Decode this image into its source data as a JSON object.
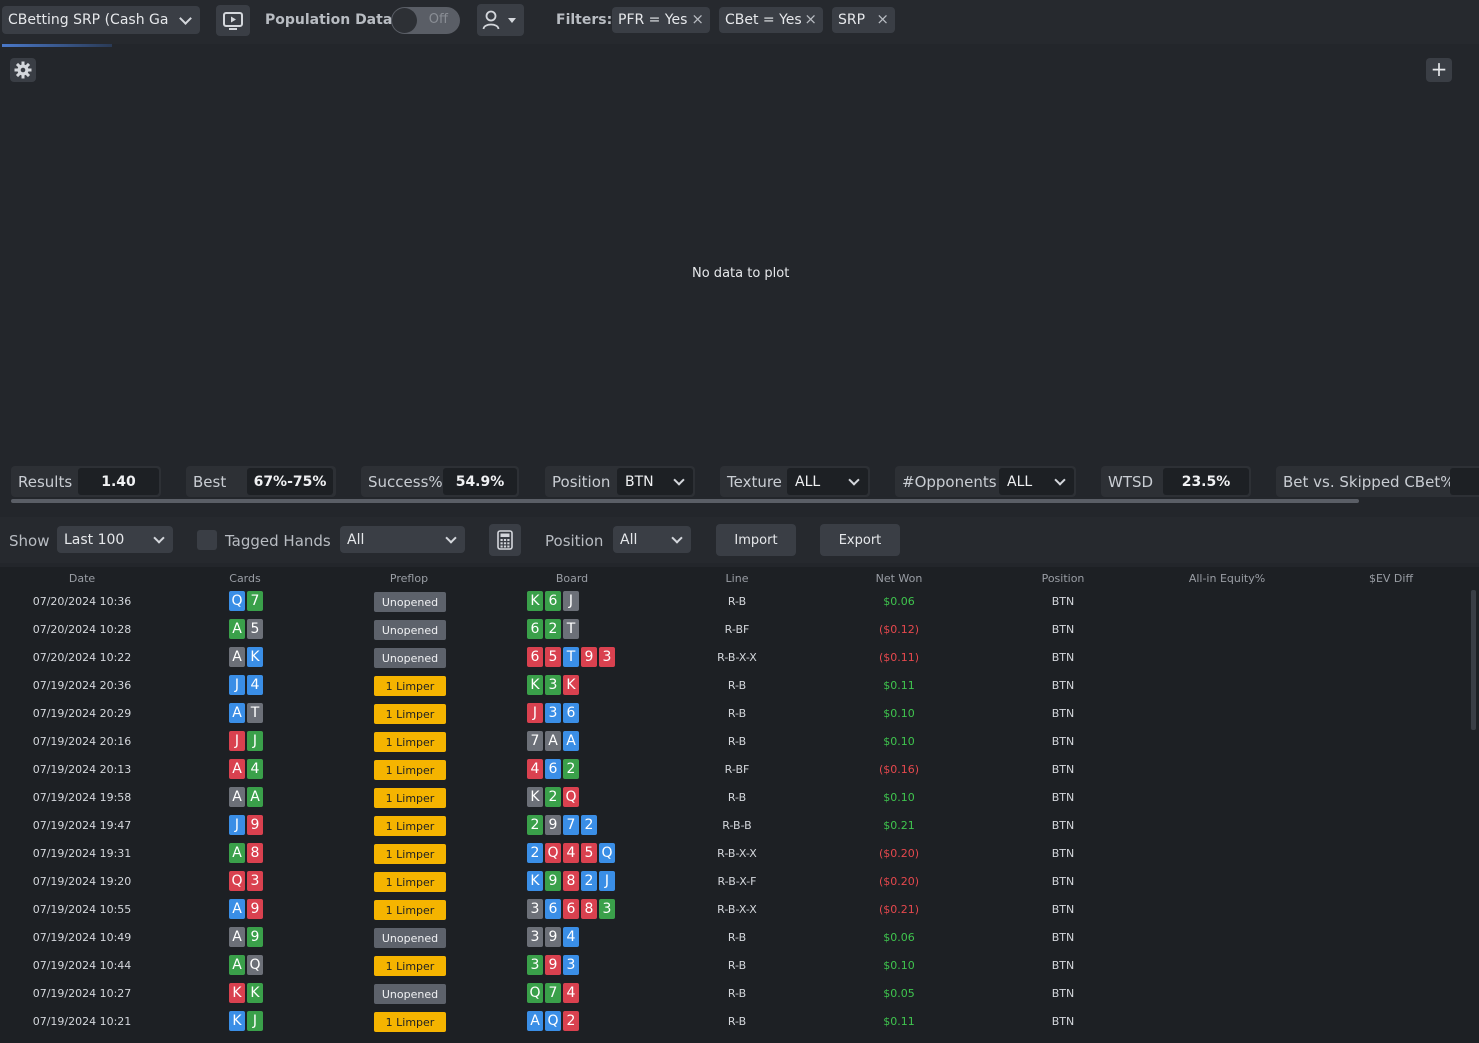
{
  "topbar": {
    "report_select": "CBetting SRP (Cash Game)",
    "presentation_icon": "presentation-icon",
    "population_label": "Population Data",
    "population_toggle": "Off",
    "player_icon": "user-icon",
    "filters_label": "Filters:",
    "filters": [
      {
        "label": "PFR = Yes"
      },
      {
        "label": "CBet = Yes"
      },
      {
        "label": "SRP"
      }
    ]
  },
  "plot": {
    "no_data": "No data to plot"
  },
  "stats": [
    {
      "label": "Results",
      "value": "1.40"
    },
    {
      "label": "Best",
      "value": "67%-75%"
    },
    {
      "label": "Success%",
      "value": "54.9%"
    },
    {
      "label": "Position",
      "value": "BTN"
    },
    {
      "label": "Texture",
      "value": "ALL"
    },
    {
      "label": "#Opponents",
      "value": "ALL"
    },
    {
      "label": "WTSD",
      "value": "23.5%"
    },
    {
      "label": "Bet vs. Skipped CBet%",
      "value": ""
    }
  ],
  "toolbar": {
    "show_label": "Show",
    "show_value": "Last 100",
    "tagged_label": "Tagged Hands",
    "tagged_value": "All",
    "position_label": "Position",
    "position_value": "All",
    "import_label": "Import",
    "export_label": "Export"
  },
  "table": {
    "columns": [
      "Date",
      "Cards",
      "Preflop",
      "Board",
      "Line",
      "Net Won",
      "Position",
      "All-in Equity%",
      "$EV Diff"
    ],
    "rows": [
      {
        "date": "07/20/2024 10:36",
        "cards": [
          [
            "Q",
            "b"
          ],
          [
            "7",
            "g"
          ]
        ],
        "preflop": "Unopened",
        "board": [
          [
            "K",
            "g"
          ],
          [
            "6",
            "g"
          ],
          [
            "J",
            "x"
          ]
        ],
        "line": "R-B",
        "net": "$0.06",
        "pos": "BTN"
      },
      {
        "date": "07/20/2024 10:28",
        "cards": [
          [
            "A",
            "g"
          ],
          [
            "5",
            "x"
          ]
        ],
        "preflop": "Unopened",
        "board": [
          [
            "6",
            "g"
          ],
          [
            "2",
            "g"
          ],
          [
            "T",
            "x"
          ]
        ],
        "line": "R-BF",
        "net": "($0.12)",
        "pos": "BTN"
      },
      {
        "date": "07/20/2024 10:22",
        "cards": [
          [
            "A",
            "x"
          ],
          [
            "K",
            "b"
          ]
        ],
        "preflop": "Unopened",
        "board": [
          [
            "6",
            "r"
          ],
          [
            "5",
            "r"
          ],
          [
            "T",
            "b"
          ],
          [
            "9",
            "r"
          ],
          [
            "3",
            "r"
          ]
        ],
        "line": "R-B-X-X",
        "net": "($0.11)",
        "pos": "BTN"
      },
      {
        "date": "07/19/2024 20:36",
        "cards": [
          [
            "J",
            "b"
          ],
          [
            "4",
            "b"
          ]
        ],
        "preflop": "1 Limper",
        "board": [
          [
            "K",
            "g"
          ],
          [
            "3",
            "g"
          ],
          [
            "K",
            "r"
          ]
        ],
        "line": "R-B",
        "net": "$0.11",
        "pos": "BTN"
      },
      {
        "date": "07/19/2024 20:29",
        "cards": [
          [
            "A",
            "b"
          ],
          [
            "T",
            "x"
          ]
        ],
        "preflop": "1 Limper",
        "board": [
          [
            "J",
            "r"
          ],
          [
            "3",
            "b"
          ],
          [
            "6",
            "b"
          ]
        ],
        "line": "R-B",
        "net": "$0.10",
        "pos": "BTN"
      },
      {
        "date": "07/19/2024 20:16",
        "cards": [
          [
            "J",
            "r"
          ],
          [
            "J",
            "g"
          ]
        ],
        "preflop": "1 Limper",
        "board": [
          [
            "7",
            "x"
          ],
          [
            "A",
            "x"
          ],
          [
            "A",
            "b"
          ]
        ],
        "line": "R-B",
        "net": "$0.10",
        "pos": "BTN"
      },
      {
        "date": "07/19/2024 20:13",
        "cards": [
          [
            "A",
            "r"
          ],
          [
            "4",
            "g"
          ]
        ],
        "preflop": "1 Limper",
        "board": [
          [
            "4",
            "r"
          ],
          [
            "6",
            "b"
          ],
          [
            "2",
            "g"
          ]
        ],
        "line": "R-BF",
        "net": "($0.16)",
        "pos": "BTN"
      },
      {
        "date": "07/19/2024 19:58",
        "cards": [
          [
            "A",
            "x"
          ],
          [
            "A",
            "g"
          ]
        ],
        "preflop": "1 Limper",
        "board": [
          [
            "K",
            "x"
          ],
          [
            "2",
            "g"
          ],
          [
            "Q",
            "r"
          ]
        ],
        "line": "R-B",
        "net": "$0.10",
        "pos": "BTN"
      },
      {
        "date": "07/19/2024 19:47",
        "cards": [
          [
            "J",
            "b"
          ],
          [
            "9",
            "r"
          ]
        ],
        "preflop": "1 Limper",
        "board": [
          [
            "2",
            "g"
          ],
          [
            "9",
            "x"
          ],
          [
            "7",
            "b"
          ],
          [
            "2",
            "b"
          ]
        ],
        "line": "R-B-B",
        "net": "$0.21",
        "pos": "BTN"
      },
      {
        "date": "07/19/2024 19:31",
        "cards": [
          [
            "A",
            "g"
          ],
          [
            "8",
            "r"
          ]
        ],
        "preflop": "1 Limper",
        "board": [
          [
            "2",
            "b"
          ],
          [
            "Q",
            "r"
          ],
          [
            "4",
            "r"
          ],
          [
            "5",
            "r"
          ],
          [
            "Q",
            "b"
          ]
        ],
        "line": "R-B-X-X",
        "net": "($0.20)",
        "pos": "BTN"
      },
      {
        "date": "07/19/2024 19:20",
        "cards": [
          [
            "Q",
            "r"
          ],
          [
            "3",
            "r"
          ]
        ],
        "preflop": "1 Limper",
        "board": [
          [
            "K",
            "b"
          ],
          [
            "9",
            "g"
          ],
          [
            "8",
            "r"
          ],
          [
            "2",
            "b"
          ],
          [
            "J",
            "b"
          ]
        ],
        "line": "R-B-X-F",
        "net": "($0.20)",
        "pos": "BTN"
      },
      {
        "date": "07/19/2024 10:55",
        "cards": [
          [
            "A",
            "b"
          ],
          [
            "9",
            "r"
          ]
        ],
        "preflop": "1 Limper",
        "board": [
          [
            "3",
            "x"
          ],
          [
            "6",
            "b"
          ],
          [
            "6",
            "r"
          ],
          [
            "8",
            "r"
          ],
          [
            "3",
            "g"
          ]
        ],
        "line": "R-B-X-X",
        "net": "($0.21)",
        "pos": "BTN"
      },
      {
        "date": "07/19/2024 10:49",
        "cards": [
          [
            "A",
            "x"
          ],
          [
            "9",
            "g"
          ]
        ],
        "preflop": "Unopened",
        "board": [
          [
            "3",
            "x"
          ],
          [
            "9",
            "x"
          ],
          [
            "4",
            "b"
          ]
        ],
        "line": "R-B",
        "net": "$0.06",
        "pos": "BTN"
      },
      {
        "date": "07/19/2024 10:44",
        "cards": [
          [
            "A",
            "g"
          ],
          [
            "Q",
            "x"
          ]
        ],
        "preflop": "1 Limper",
        "board": [
          [
            "3",
            "g"
          ],
          [
            "9",
            "r"
          ],
          [
            "3",
            "b"
          ]
        ],
        "line": "R-B",
        "net": "$0.10",
        "pos": "BTN"
      },
      {
        "date": "07/19/2024 10:27",
        "cards": [
          [
            "K",
            "r"
          ],
          [
            "K",
            "g"
          ]
        ],
        "preflop": "Unopened",
        "board": [
          [
            "Q",
            "g"
          ],
          [
            "7",
            "g"
          ],
          [
            "4",
            "r"
          ]
        ],
        "line": "R-B",
        "net": "$0.05",
        "pos": "BTN"
      },
      {
        "date": "07/19/2024 10:21",
        "cards": [
          [
            "K",
            "b"
          ],
          [
            "J",
            "g"
          ]
        ],
        "preflop": "1 Limper",
        "board": [
          [
            "A",
            "b"
          ],
          [
            "Q",
            "b"
          ],
          [
            "2",
            "r"
          ]
        ],
        "line": "R-B",
        "net": "$0.11",
        "pos": "BTN"
      }
    ]
  },
  "colors": {
    "suit_b": "#3a8ee6",
    "suit_g": "#3aa04a",
    "suit_r": "#d9414f",
    "suit_x": "#6c7078",
    "pos_net": "#3fc44e",
    "neg_net": "#e5484d",
    "unopened_bg": "#5d626b",
    "limper_bg": "#f5b400"
  }
}
